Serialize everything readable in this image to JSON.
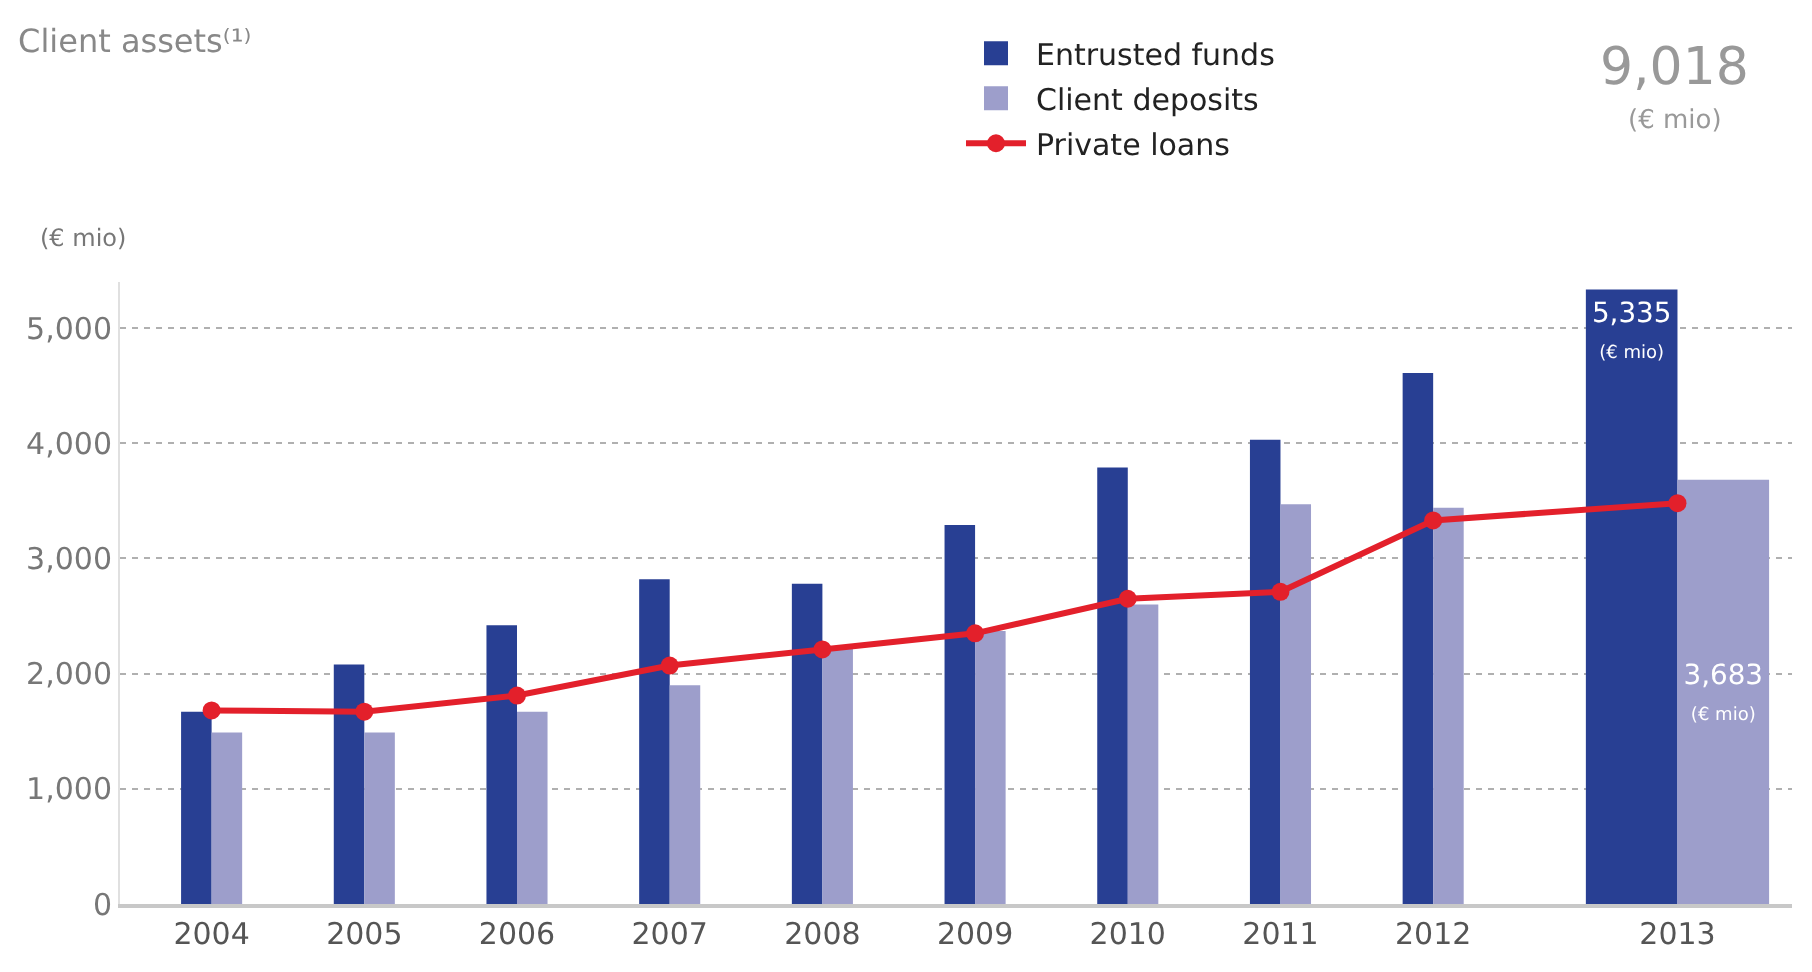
{
  "chart_data": {
    "type": "bar",
    "title": "Client assets⁽¹⁾",
    "ylabel": "(€ mio)",
    "categories": [
      "2004",
      "2005",
      "2006",
      "2007",
      "2008",
      "2009",
      "2010",
      "2011",
      "2012",
      "2013"
    ],
    "series": [
      {
        "name": "Entrusted funds",
        "color": "#283f93",
        "values": [
          1670,
          2080,
          2420,
          2820,
          2780,
          3290,
          3790,
          4030,
          4610,
          5335
        ],
        "value_labels": [
          null,
          null,
          null,
          null,
          null,
          null,
          null,
          null,
          null,
          "5,335\n(€ mio)"
        ]
      },
      {
        "name": "Client deposits",
        "color": "#9d9ecb",
        "values": [
          1490,
          1490,
          1670,
          1900,
          2220,
          2370,
          2600,
          3470,
          3440,
          3683
        ],
        "value_labels": [
          null,
          null,
          null,
          null,
          null,
          null,
          null,
          null,
          null,
          "3,683\n(€ mio)"
        ]
      },
      {
        "name": "Private loans",
        "type": "line",
        "color": "#e3202b",
        "marker": "circle",
        "values": [
          1680,
          1670,
          1810,
          2070,
          2210,
          2350,
          2650,
          2710,
          3330,
          3480
        ]
      }
    ],
    "annotations": [
      "9,018",
      "(€ mio)"
    ],
    "ylim": [
      0,
      5400
    ],
    "yticks": [
      0,
      {
        "value": 1000,
        "label": "1,000"
      },
      {
        "value": 2000,
        "label": "2,000"
      },
      {
        "value": 3000,
        "label": "3,000"
      },
      {
        "value": 4000,
        "label": "4,000"
      },
      {
        "value": 5000,
        "label": "5,000"
      }
    ],
    "grid": "y",
    "legend": "top"
  }
}
